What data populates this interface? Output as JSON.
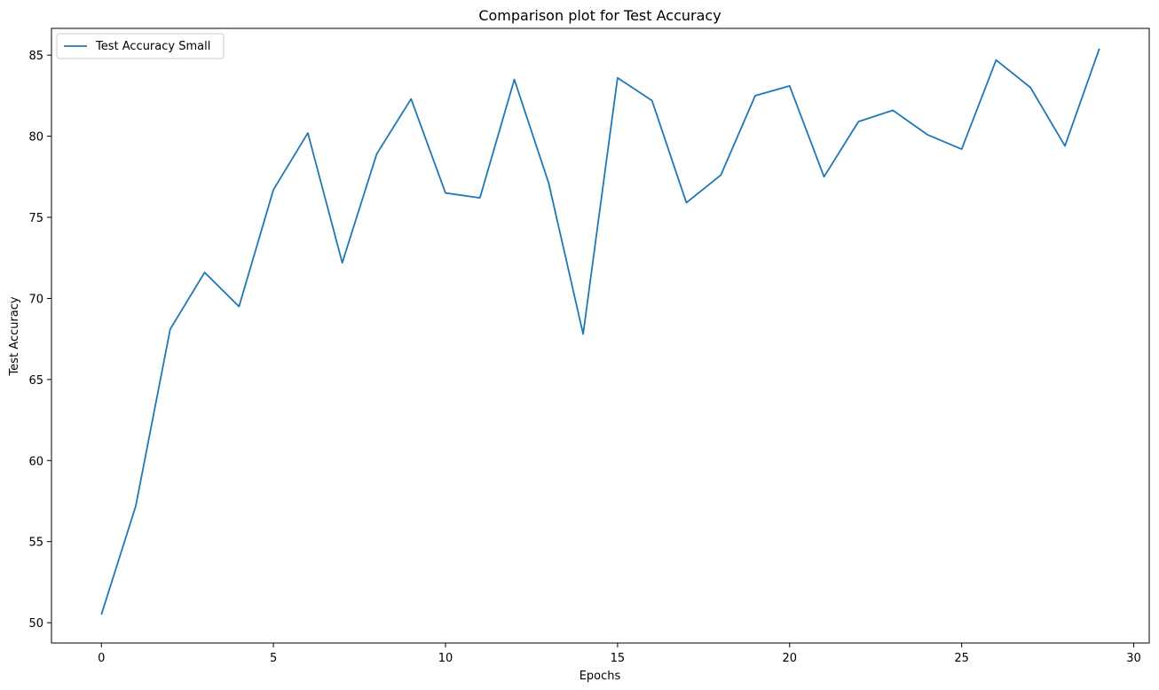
{
  "chart_data": {
    "type": "line",
    "title": "Comparison plot for Test Accuracy",
    "xlabel": "Epochs",
    "ylabel": "Test Accuracy",
    "xlim": [
      -1.45,
      30.45
    ],
    "ylim": [
      48.75,
      86.65
    ],
    "xticks": [
      0,
      5,
      10,
      15,
      20,
      25,
      30
    ],
    "yticks": [
      50,
      55,
      60,
      65,
      70,
      75,
      80,
      85
    ],
    "grid": false,
    "legend_position": "top-left",
    "series": [
      {
        "name": "Test Accuracy Small",
        "color": "#1f77b4",
        "x": [
          0,
          1,
          2,
          3,
          4,
          5,
          6,
          7,
          8,
          9,
          10,
          11,
          12,
          13,
          14,
          15,
          16,
          17,
          18,
          19,
          20,
          21,
          22,
          23,
          24,
          25,
          26,
          27,
          28,
          29
        ],
        "y": [
          50.5,
          57.2,
          68.1,
          71.6,
          69.5,
          76.7,
          80.2,
          72.2,
          78.9,
          82.3,
          76.5,
          76.2,
          83.5,
          77.1,
          67.8,
          83.6,
          82.2,
          75.9,
          77.6,
          82.5,
          83.1,
          77.5,
          80.9,
          81.6,
          80.1,
          79.2,
          84.7,
          83.0,
          79.4,
          85.4
        ]
      }
    ]
  }
}
